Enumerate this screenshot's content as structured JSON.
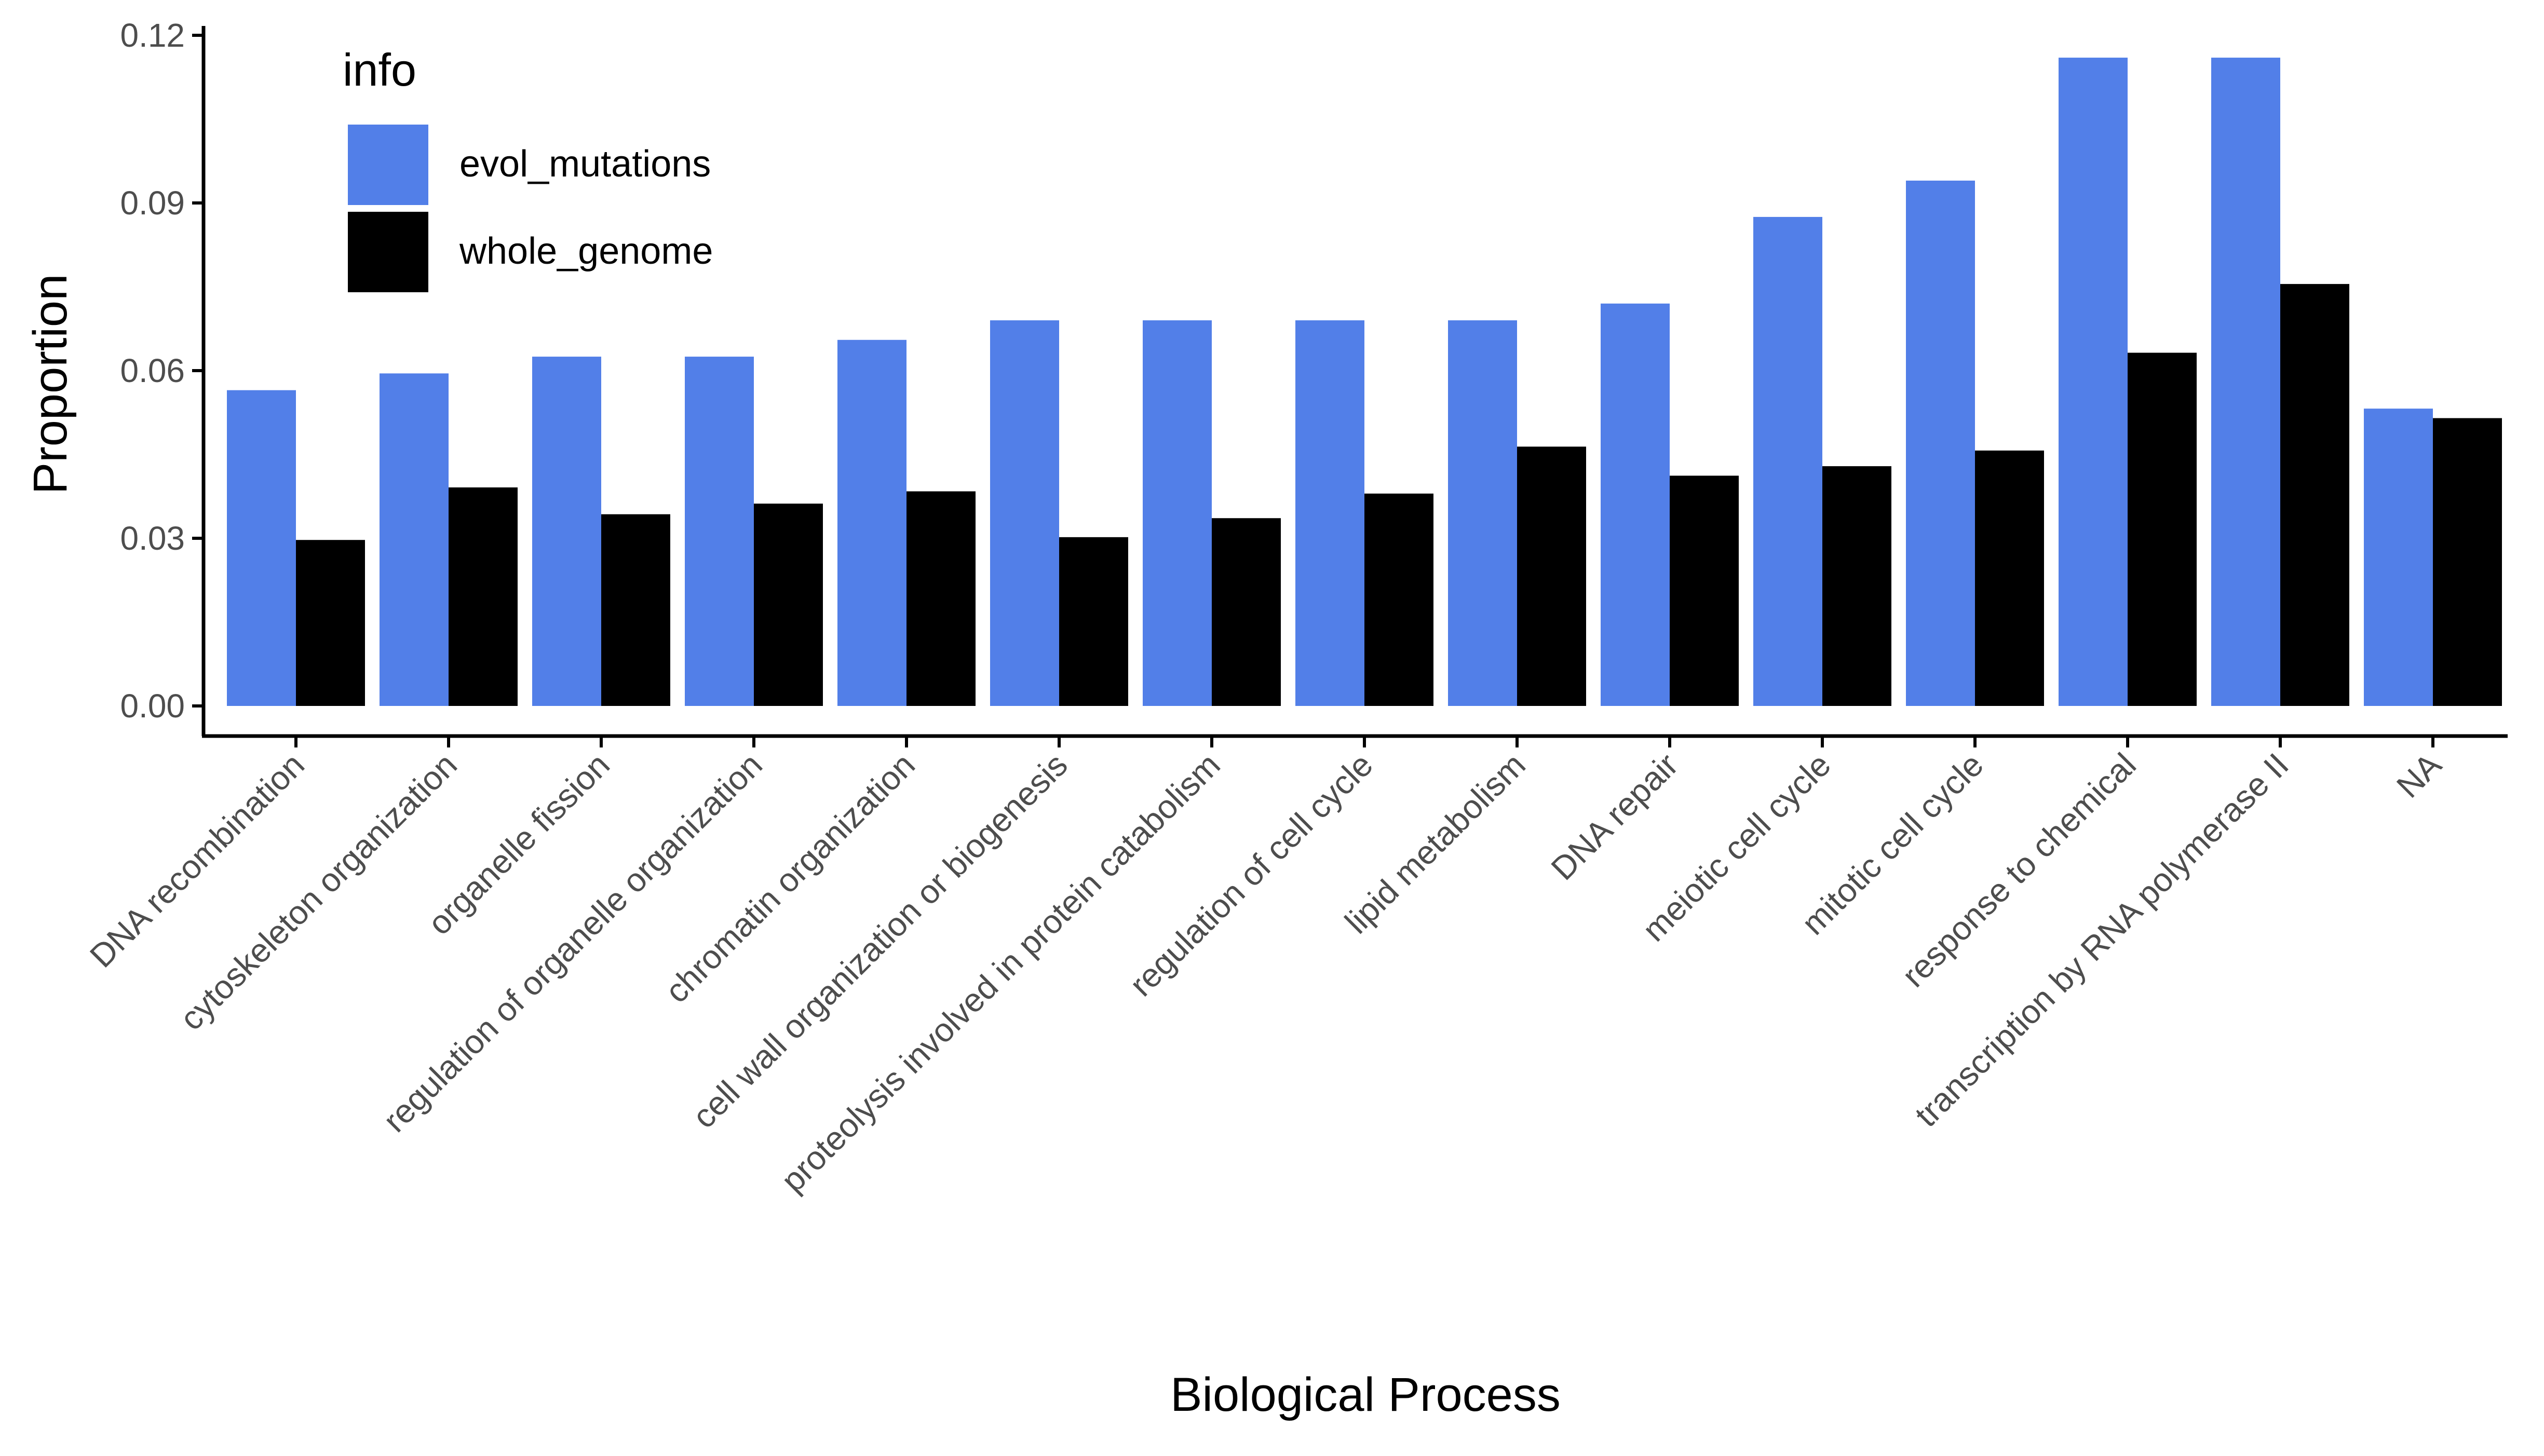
{
  "chart_data": {
    "type": "bar",
    "title": "",
    "xlabel": "Biological Process",
    "ylabel": "Proportion",
    "ylim": [
      0,
      0.12
    ],
    "yticks": [
      0.0,
      0.03,
      0.06,
      0.09,
      0.12
    ],
    "ytick_labels": [
      "0.00",
      "0.03",
      "0.06",
      "0.09",
      "0.12"
    ],
    "grid": false,
    "legend": {
      "title": "info",
      "placement": "top-left inside"
    },
    "categories": [
      "DNA recombination",
      "cytoskeleton organization",
      "organelle fission",
      "regulation of organelle organization",
      "chromatin organization",
      "cell wall organization or biogenesis",
      "proteolysis involved in protein catabolism",
      "regulation of cell cycle",
      "lipid metabolism",
      "DNA repair",
      "meiotic cell cycle",
      "mitotic cell cycle",
      "response to chemical",
      "transcription by RNA polymerase II",
      "NA"
    ],
    "series": [
      {
        "name": "evol_mutations",
        "color": "#527FE8",
        "values": [
          0.0565,
          0.0595,
          0.0625,
          0.0625,
          0.0655,
          0.069,
          0.069,
          0.069,
          0.069,
          0.072,
          0.0875,
          0.094,
          0.116,
          0.116,
          0.0532
        ]
      },
      {
        "name": "whole_genome",
        "color": "#000000",
        "values": [
          0.0297,
          0.0391,
          0.0343,
          0.0362,
          0.0384,
          0.0302,
          0.0336,
          0.038,
          0.0464,
          0.0412,
          0.0429,
          0.0457,
          0.0632,
          0.0755,
          0.0515
        ]
      }
    ]
  }
}
